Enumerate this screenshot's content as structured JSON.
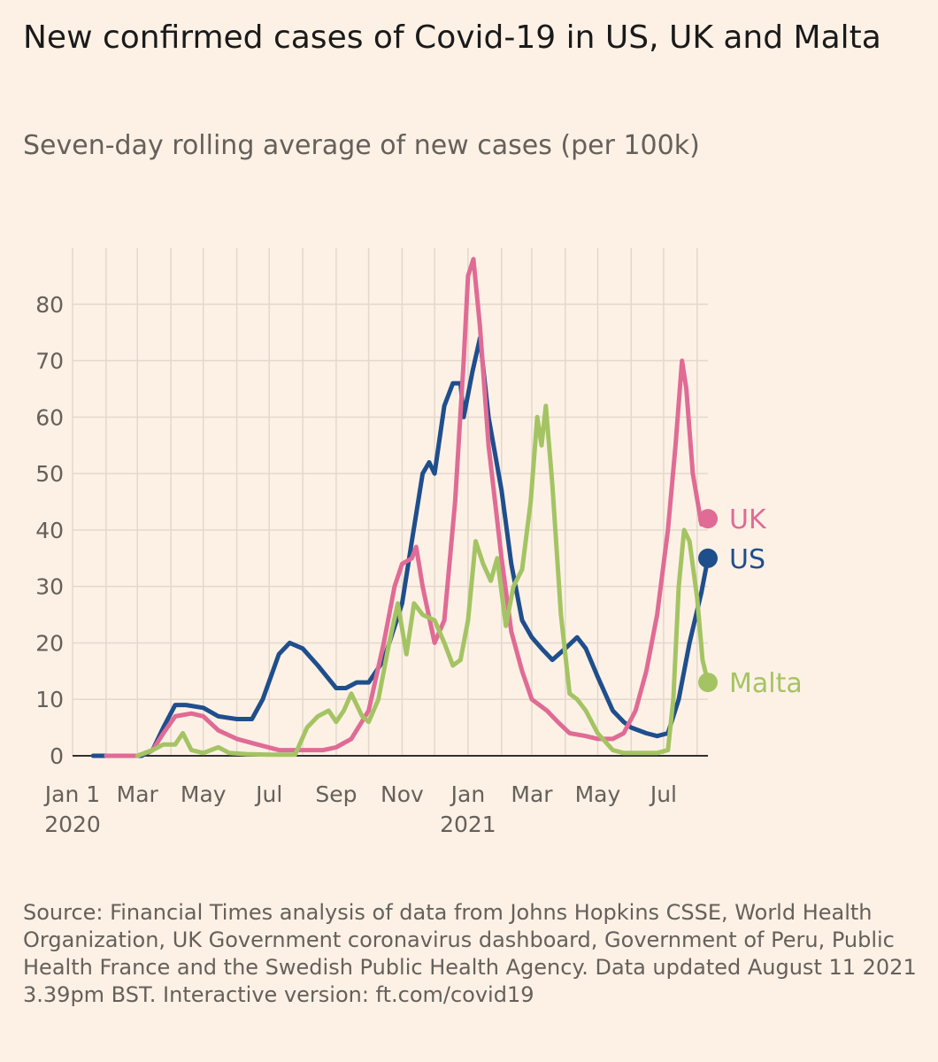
{
  "title": "New confirmed cases of Covid-19 in US, UK and Malta",
  "subtitle": "Seven-day rolling average of new cases (per 100k)",
  "source": "Source: Financial Times analysis of data from Johns Hopkins CSSE, World Health Organization, UK Government coronavirus dashboard, Government of Peru, Public Health France and the Swedish Public Health Agency. Data updated August 11 2021 3.39pm BST. Interactive version: ft.com/covid19",
  "chart_data": {
    "type": "line",
    "title": "New confirmed cases of Covid-19 in US, UK and Malta",
    "subtitle": "Seven-day rolling average of new cases (per 100k)",
    "xlabel": "",
    "ylabel": "",
    "ylim": [
      0,
      90
    ],
    "xlim": [
      "2020-01-01",
      "2021-08-11"
    ],
    "grid": true,
    "legend": "end-of-line labels",
    "y_ticks": [
      {
        "value": 0,
        "label": "0"
      },
      {
        "value": 10,
        "label": "10"
      },
      {
        "value": 20,
        "label": "20"
      },
      {
        "value": 30,
        "label": "30"
      },
      {
        "value": 40,
        "label": "40"
      },
      {
        "value": 50,
        "label": "50"
      },
      {
        "value": 60,
        "label": "60"
      },
      {
        "value": 70,
        "label": "70"
      },
      {
        "value": 80,
        "label": "80"
      }
    ],
    "x_ticks": [
      {
        "date": "2020-01-01",
        "label": "Jan 1",
        "sublabel": "2020"
      },
      {
        "date": "2020-03-01",
        "label": "Mar"
      },
      {
        "date": "2020-05-01",
        "label": "May"
      },
      {
        "date": "2020-07-01",
        "label": "Jul"
      },
      {
        "date": "2020-09-01",
        "label": "Sep"
      },
      {
        "date": "2020-11-01",
        "label": "Nov"
      },
      {
        "date": "2021-01-01",
        "label": "Jan",
        "sublabel": "2021"
      },
      {
        "date": "2021-03-01",
        "label": "Mar"
      },
      {
        "date": "2021-05-01",
        "label": "May"
      },
      {
        "date": "2021-07-01",
        "label": "Jul"
      }
    ],
    "series": [
      {
        "name": "US",
        "color": "#1F4E8C",
        "points": [
          [
            "2020-01-20",
            0
          ],
          [
            "2020-02-15",
            0
          ],
          [
            "2020-03-05",
            0
          ],
          [
            "2020-03-15",
            1
          ],
          [
            "2020-03-25",
            5
          ],
          [
            "2020-04-05",
            9
          ],
          [
            "2020-04-15",
            9
          ],
          [
            "2020-05-01",
            8.5
          ],
          [
            "2020-05-15",
            7
          ],
          [
            "2020-06-01",
            6.5
          ],
          [
            "2020-06-15",
            6.5
          ],
          [
            "2020-06-25",
            10
          ],
          [
            "2020-07-10",
            18
          ],
          [
            "2020-07-20",
            20
          ],
          [
            "2020-08-01",
            19
          ],
          [
            "2020-08-15",
            16
          ],
          [
            "2020-09-01",
            12
          ],
          [
            "2020-09-10",
            12
          ],
          [
            "2020-09-20",
            13
          ],
          [
            "2020-10-01",
            13
          ],
          [
            "2020-10-15",
            17
          ],
          [
            "2020-11-01",
            27
          ],
          [
            "2020-11-10",
            38
          ],
          [
            "2020-11-20",
            50
          ],
          [
            "2020-11-26",
            52
          ],
          [
            "2020-12-01",
            50
          ],
          [
            "2020-12-10",
            62
          ],
          [
            "2020-12-18",
            66
          ],
          [
            "2020-12-25",
            66
          ],
          [
            "2020-12-28",
            60
          ],
          [
            "2021-01-05",
            68
          ],
          [
            "2021-01-12",
            74
          ],
          [
            "2021-01-20",
            60
          ],
          [
            "2021-02-01",
            47
          ],
          [
            "2021-02-10",
            34
          ],
          [
            "2021-02-20",
            24
          ],
          [
            "2021-03-01",
            21
          ],
          [
            "2021-03-10",
            19
          ],
          [
            "2021-03-20",
            17
          ],
          [
            "2021-04-01",
            19
          ],
          [
            "2021-04-12",
            21
          ],
          [
            "2021-04-20",
            19
          ],
          [
            "2021-05-01",
            14
          ],
          [
            "2021-05-15",
            8
          ],
          [
            "2021-05-25",
            6
          ],
          [
            "2021-06-01",
            5
          ],
          [
            "2021-06-15",
            4
          ],
          [
            "2021-06-25",
            3.5
          ],
          [
            "2021-07-05",
            4
          ],
          [
            "2021-07-15",
            10
          ],
          [
            "2021-07-25",
            20
          ],
          [
            "2021-08-05",
            29
          ],
          [
            "2021-08-11",
            35
          ]
        ]
      },
      {
        "name": "UK",
        "color": "#E06B95",
        "points": [
          [
            "2020-02-01",
            0
          ],
          [
            "2020-03-01",
            0
          ],
          [
            "2020-03-15",
            1
          ],
          [
            "2020-03-25",
            4
          ],
          [
            "2020-04-05",
            7
          ],
          [
            "2020-04-20",
            7.5
          ],
          [
            "2020-05-01",
            7
          ],
          [
            "2020-05-15",
            4.5
          ],
          [
            "2020-06-01",
            3
          ],
          [
            "2020-06-20",
            2
          ],
          [
            "2020-07-10",
            1
          ],
          [
            "2020-08-01",
            1
          ],
          [
            "2020-08-20",
            1
          ],
          [
            "2020-09-01",
            1.5
          ],
          [
            "2020-09-15",
            3
          ],
          [
            "2020-10-01",
            8
          ],
          [
            "2020-10-15",
            20
          ],
          [
            "2020-10-25",
            30
          ],
          [
            "2020-11-01",
            34
          ],
          [
            "2020-11-10",
            35
          ],
          [
            "2020-11-14",
            37
          ],
          [
            "2020-11-20",
            30
          ],
          [
            "2020-12-01",
            20
          ],
          [
            "2020-12-10",
            24
          ],
          [
            "2020-12-20",
            45
          ],
          [
            "2020-12-28",
            70
          ],
          [
            "2021-01-01",
            85
          ],
          [
            "2021-01-06",
            88
          ],
          [
            "2021-01-12",
            76
          ],
          [
            "2021-01-20",
            55
          ],
          [
            "2021-02-01",
            35
          ],
          [
            "2021-02-10",
            22
          ],
          [
            "2021-02-20",
            15
          ],
          [
            "2021-03-01",
            10
          ],
          [
            "2021-03-15",
            8
          ],
          [
            "2021-03-25",
            6
          ],
          [
            "2021-04-05",
            4
          ],
          [
            "2021-04-20",
            3.5
          ],
          [
            "2021-05-01",
            3
          ],
          [
            "2021-05-15",
            3
          ],
          [
            "2021-05-25",
            4
          ],
          [
            "2021-06-05",
            8
          ],
          [
            "2021-06-15",
            15
          ],
          [
            "2021-06-25",
            25
          ],
          [
            "2021-07-05",
            40
          ],
          [
            "2021-07-12",
            55
          ],
          [
            "2021-07-18",
            70
          ],
          [
            "2021-07-22",
            65
          ],
          [
            "2021-07-28",
            50
          ],
          [
            "2021-08-05",
            41
          ],
          [
            "2021-08-11",
            42
          ]
        ]
      },
      {
        "name": "Malta",
        "color": "#A4C463",
        "points": [
          [
            "2020-03-01",
            0
          ],
          [
            "2020-03-15",
            1
          ],
          [
            "2020-03-25",
            2
          ],
          [
            "2020-04-05",
            2
          ],
          [
            "2020-04-12",
            4
          ],
          [
            "2020-04-20",
            1
          ],
          [
            "2020-05-01",
            0.5
          ],
          [
            "2020-05-15",
            1.5
          ],
          [
            "2020-05-25",
            0.5
          ],
          [
            "2020-06-10",
            0.3
          ],
          [
            "2020-07-01",
            0.2
          ],
          [
            "2020-07-25",
            0.2
          ],
          [
            "2020-08-05",
            5
          ],
          [
            "2020-08-15",
            7
          ],
          [
            "2020-08-25",
            8
          ],
          [
            "2020-09-01",
            6
          ],
          [
            "2020-09-08",
            8
          ],
          [
            "2020-09-15",
            11
          ],
          [
            "2020-09-25",
            7
          ],
          [
            "2020-10-01",
            6
          ],
          [
            "2020-10-10",
            10
          ],
          [
            "2020-10-20",
            20
          ],
          [
            "2020-10-28",
            27
          ],
          [
            "2020-11-05",
            18
          ],
          [
            "2020-11-12",
            27
          ],
          [
            "2020-11-20",
            25
          ],
          [
            "2020-12-01",
            24
          ],
          [
            "2020-12-10",
            20
          ],
          [
            "2020-12-18",
            16
          ],
          [
            "2020-12-25",
            17
          ],
          [
            "2021-01-01",
            24
          ],
          [
            "2021-01-08",
            38
          ],
          [
            "2021-01-15",
            34
          ],
          [
            "2021-01-22",
            31
          ],
          [
            "2021-01-28",
            35
          ],
          [
            "2021-02-05",
            23
          ],
          [
            "2021-02-12",
            30
          ],
          [
            "2021-02-20",
            33
          ],
          [
            "2021-02-28",
            45
          ],
          [
            "2021-03-06",
            60
          ],
          [
            "2021-03-10",
            55
          ],
          [
            "2021-03-14",
            62
          ],
          [
            "2021-03-20",
            48
          ],
          [
            "2021-03-28",
            25
          ],
          [
            "2021-04-05",
            11
          ],
          [
            "2021-04-12",
            10
          ],
          [
            "2021-04-20",
            8
          ],
          [
            "2021-05-01",
            4
          ],
          [
            "2021-05-15",
            1
          ],
          [
            "2021-05-25",
            0.5
          ],
          [
            "2021-06-10",
            0.5
          ],
          [
            "2021-06-25",
            0.5
          ],
          [
            "2021-07-05",
            1
          ],
          [
            "2021-07-10",
            10
          ],
          [
            "2021-07-15",
            30
          ],
          [
            "2021-07-20",
            40
          ],
          [
            "2021-07-25",
            38
          ],
          [
            "2021-08-01",
            28
          ],
          [
            "2021-08-06",
            17
          ],
          [
            "2021-08-11",
            13
          ]
        ]
      }
    ]
  }
}
